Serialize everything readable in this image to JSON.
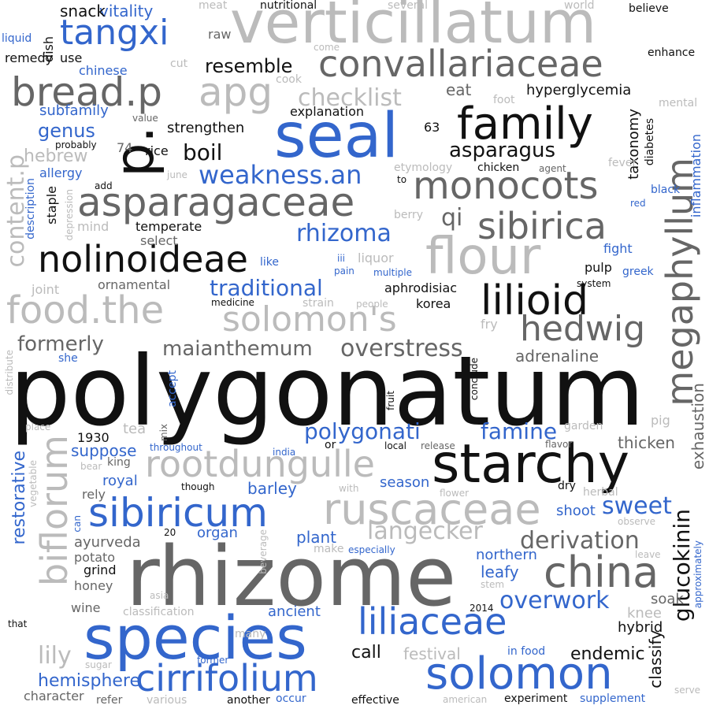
{
  "palette": {
    "black": "#111111",
    "dark_gray": "#666666",
    "light_gray": "#bbbbbb",
    "blue": "#3366cc"
  },
  "words": {
    "polygonatum": "polygonatum",
    "rhizome": "rhizome",
    "species": "species",
    "seal": "seal",
    "starchy": "starchy",
    "verticillatum": "verticillatum",
    "family": "family",
    "flour": "flour",
    "p": "p.",
    "china": "china",
    "solomon": "solomon",
    "cirrifolium": "cirrifolium",
    "liliaceae": "liliaceae",
    "sibiricum": "sibiricum",
    "rootdungulle": "rootdungulle",
    "ruscaceae": "ruscaceae",
    "asparagaceae": "asparagaceae",
    "nolinoideae": "nolinoideae",
    "monocots": "monocots",
    "sibirica": "sibirica",
    "lilioid": "lilioid",
    "hedwig": "hedwig",
    "solomons": "solomon's",
    "foodthe": "food.the",
    "breadp": "bread.p",
    "apg": "apg",
    "convallariaceae": "convallariaceae",
    "tangxi": "tangxi",
    "megaphyllum": "megaphyllum",
    "biflorum": "biflorum",
    "langecker": "langecker",
    "derivation": "derivation",
    "overwork": "overwork",
    "glucokinin": "glucokinin",
    "maianthemum": "maianthemum",
    "overstress": "overstress",
    "polygonati": "polygonati",
    "famine": "famine",
    "weaknessan": "weakness.an",
    "rhizoma": "rhizoma",
    "traditional": "traditional",
    "checklist": "checklist",
    "resemble": "resemble",
    "boil": "boil",
    "asparagus": "asparagus",
    "formerly": "formerly",
    "sweet": "sweet",
    "qi": "qi",
    "lily": "lily",
    "call": "call",
    "endemic": "endemic",
    "hemisphere": "hemisphere",
    "restorative": "restorative",
    "contentp": "content.p",
    "exhaustion": "exhaustion",
    "adrenaline": "adrenaline",
    "thicken": "thicken",
    "plant": "plant",
    "barley": "barley",
    "shoot": "shoot",
    "season": "season",
    "suppose": "suppose",
    "royal": "royal",
    "organ": "organ",
    "ayurveda": "ayurveda",
    "northern": "northern",
    "leafy": "leafy",
    "ancient": "ancient",
    "festival": "festival",
    "knee": "knee",
    "soak": "soak",
    "hybrid": "hybrid",
    "classify": "classify",
    "hyperglycemia": "hyperglycemia",
    "taxonomy": "taxonomy",
    "strengthen": "strengthen",
    "explanation": "explanation",
    "eat": "eat",
    "hebrew": "hebrew",
    "genus": "genus",
    "subfamily": "subfamily",
    "vitality": "vitality",
    "snack": "snack",
    "dish": "dish",
    "use": "use",
    "remedy": "remedy",
    "chinese": "chinese",
    "raw": "raw",
    "meat": "meat",
    "nutritional": "nutritional",
    "several": "several",
    "world": "world",
    "believe": "believe",
    "enhance": "enhance",
    "mental": "mental",
    "diabetes": "diabetes",
    "inflammation": "inflammation",
    "come": "come",
    "cook": "cook",
    "cut": "cut",
    "foot": "foot",
    "liquid": "liquid",
    "value": "value",
    "probably": "probably",
    "n74": "74",
    "rice": "rice",
    "n63": "63",
    "allergy": "allergy",
    "june": "june",
    "etymology": "etymology",
    "chicken": "chicken",
    "agent": "agent",
    "fever": "fever",
    "black": "black",
    "red": "red",
    "add": "add",
    "to": "to",
    "staple": "staple",
    "description": "description",
    "depression": "depression",
    "mind": "mind",
    "temperate": "temperate",
    "berry": "berry",
    "select": "select",
    "like": "like",
    "fight": "fight",
    "greek": "greek",
    "liquor": "liquor",
    "iii": "iii",
    "pain": "pain",
    "multiple": "multiple",
    "aphrodisiac": "aphrodisiac",
    "pulp": "pulp",
    "system": "system",
    "ornamental": "ornamental",
    "joint": "joint",
    "medicine": "medicine",
    "strain": "strain",
    "people": "people",
    "korea": "korea",
    "fry": "fry",
    "distribute": "distribute",
    "she": "she",
    "accept": "accept",
    "fruit": "fruit",
    "conclude": "conclude",
    "tea": "tea",
    "mix": "mix",
    "place": "place",
    "n1930": "1930",
    "or": "or",
    "local": "local",
    "release": "release",
    "flavor": "flavor",
    "garden": "garden",
    "pig": "pig",
    "throughout": "throughout",
    "india": "india",
    "vegetable": "vegetable",
    "king": "king",
    "bear": "bear",
    "though": "though",
    "with": "with",
    "flower": "flower",
    "dry": "dry",
    "herbal": "herbal",
    "rely": "rely",
    "can": "can",
    "n20": "20",
    "observe": "observe",
    "approximately": "approximately",
    "potato": "potato",
    "beverage": "beverage",
    "make": "make",
    "especially": "especially",
    "leave": "leave",
    "grind": "grind",
    "honey": "honey",
    "asia": "asia",
    "stem": "stem",
    "wine": "wine",
    "classification": "classification",
    "n2014": "2014",
    "that": "that",
    "many": "many",
    "former": "former",
    "sugar": "sugar",
    "infood": "in food",
    "character": "character",
    "refer": "refer",
    "various": "various",
    "another": "another",
    "occur": "occur",
    "effective": "effective",
    "american": "american",
    "experiment": "experiment",
    "supplement": "supplement",
    "serve": "serve"
  }
}
